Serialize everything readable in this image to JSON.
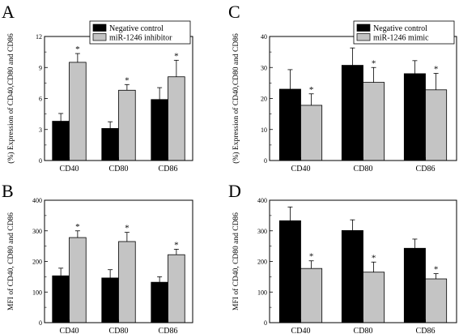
{
  "chart_data": [
    {
      "panel": "A",
      "type": "bar",
      "categories": [
        "CD40",
        "CD80",
        "CD86"
      ],
      "ylabel": "(%) Expression of CD40,CD80 and CD86",
      "ylim": [
        0,
        12
      ],
      "yticks": [
        "0",
        "3",
        "6",
        "9",
        "12"
      ],
      "legend_position": "top-right",
      "series": [
        {
          "name": "Negative control",
          "color": "#000000",
          "values": [
            3.8,
            3.1,
            5.9
          ],
          "errors": [
            0.75,
            0.65,
            1.15
          ],
          "marks": [
            "",
            "",
            ""
          ]
        },
        {
          "name": "miR-1246 inhibitor",
          "color": "#c4c4c4",
          "values": [
            9.5,
            6.8,
            8.1
          ],
          "errors": [
            0.85,
            0.55,
            1.6
          ],
          "marks": [
            "*",
            "*",
            "*"
          ]
        }
      ]
    },
    {
      "panel": "B",
      "type": "bar",
      "categories": [
        "CD40",
        "CD80",
        "CD86"
      ],
      "ylabel": "MFI of CD40, CD80 and CD86",
      "ylim": [
        0,
        400
      ],
      "yticks": [
        "0",
        "100",
        "200",
        "300",
        "400"
      ],
      "legend_position": "",
      "series": [
        {
          "name": "",
          "color": "#000000",
          "values": [
            153,
            146,
            132
          ],
          "errors": [
            25,
            27,
            18
          ],
          "marks": [
            "",
            "",
            ""
          ]
        },
        {
          "name": "",
          "color": "#c4c4c4",
          "values": [
            278,
            265,
            222
          ],
          "errors": [
            22,
            30,
            18
          ],
          "marks": [
            "*",
            "*",
            "*"
          ]
        }
      ]
    },
    {
      "panel": "C",
      "type": "bar",
      "categories": [
        "CD40",
        "CD80",
        "CD86"
      ],
      "ylabel": "(%) Expression of CD40,CD80 and CD86",
      "ylim": [
        0,
        40
      ],
      "yticks": [
        "0",
        "10",
        "20",
        "30",
        "40"
      ],
      "legend_position": "top-right",
      "series": [
        {
          "name": "Negative control",
          "color": "#000000",
          "values": [
            23,
            30.7,
            28
          ],
          "errors": [
            6.3,
            5.6,
            4.2
          ],
          "marks": [
            "",
            "",
            ""
          ]
        },
        {
          "name": "miR-1246 mimic",
          "color": "#c4c4c4",
          "values": [
            17.8,
            25.2,
            22.8
          ],
          "errors": [
            3.7,
            4.8,
            5.3
          ],
          "marks": [
            "*",
            "*",
            "*"
          ]
        }
      ]
    },
    {
      "panel": "D",
      "type": "bar",
      "categories": [
        "CD40",
        "CD80",
        "CD86"
      ],
      "ylabel": "MFI of CD40, CD80 and CD86",
      "ylim": [
        0,
        400
      ],
      "yticks": [
        "0",
        "100",
        "200",
        "300",
        "400"
      ],
      "legend_position": "",
      "series": [
        {
          "name": "",
          "color": "#000000",
          "values": [
            333,
            301,
            243
          ],
          "errors": [
            45,
            35,
            30
          ],
          "marks": [
            "",
            "",
            ""
          ]
        },
        {
          "name": "",
          "color": "#c4c4c4",
          "values": [
            177,
            165,
            143
          ],
          "errors": [
            25,
            33,
            17
          ],
          "marks": [
            "*",
            "*",
            "*"
          ]
        }
      ]
    }
  ]
}
